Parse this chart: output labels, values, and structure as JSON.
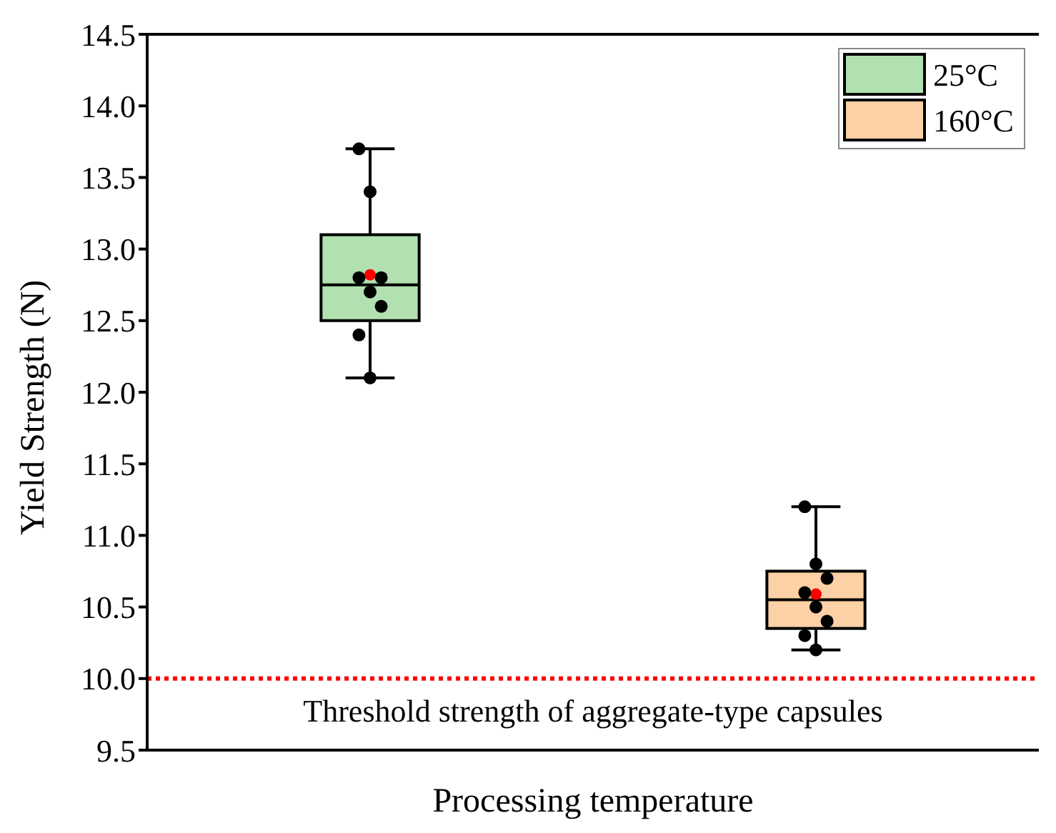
{
  "chart_data": {
    "type": "box",
    "ylabel": "Yield Strength (N)",
    "xlabel": "Processing temperature",
    "categories": [
      null,
      null
    ],
    "series": [
      {
        "name": "25°C",
        "color": "#b1e0b1",
        "boxes": [
          {
            "low": 12.1,
            "q1": 12.5,
            "median": 12.75,
            "q3": 13.1,
            "high": 13.7,
            "mean": 12.82
          },
          null
        ]
      },
      {
        "name": "160°C",
        "color": "#fbd1a5",
        "boxes": [
          null,
          {
            "low": 10.2,
            "q1": 10.35,
            "median": 10.55,
            "q3": 10.75,
            "high": 11.2,
            "mean": 10.59
          }
        ]
      },
      {
        "type": "scatter",
        "color": "#000000",
        "values": [
          13.7,
          11.2
        ]
      },
      {
        "type": "scatter",
        "color": "#000000",
        "values": [
          13.4,
          10.8
        ]
      },
      {
        "type": "scatter",
        "color": "#000000",
        "values": [
          12.8,
          10.7
        ]
      },
      {
        "type": "scatter",
        "color": "#000000",
        "values": [
          12.8,
          10.6
        ]
      },
      {
        "type": "scatter",
        "color": "#000000",
        "values": [
          12.7,
          10.5
        ]
      },
      {
        "type": "scatter",
        "color": "#000000",
        "values": [
          12.6,
          10.4
        ]
      },
      {
        "type": "scatter",
        "color": "#000000",
        "values": [
          12.4,
          10.3
        ]
      },
      {
        "type": "scatter",
        "color": "#000000",
        "values": [
          12.1,
          10.2
        ]
      }
    ],
    "ylim": [
      9.5,
      14.5
    ],
    "yticks": [
      9.5,
      {
        "value": 10,
        "label": "10.0"
      },
      10.5,
      {
        "value": 11,
        "label": "11.0"
      },
      11.5,
      {
        "value": 12,
        "label": "12.0"
      },
      12.5,
      {
        "value": 13,
        "label": "13.0"
      },
      13.5,
      {
        "value": 14,
        "label": "14.0"
      },
      14.5
    ],
    "ref_lines": [
      {
        "axis": "y",
        "value": 10,
        "label": "Threshold strength of aggregate-type capsules",
        "color": "#ff0000",
        "line_style": "dotted"
      }
    ],
    "legend": "top right",
    "grid": false,
    "marker": "circle"
  }
}
